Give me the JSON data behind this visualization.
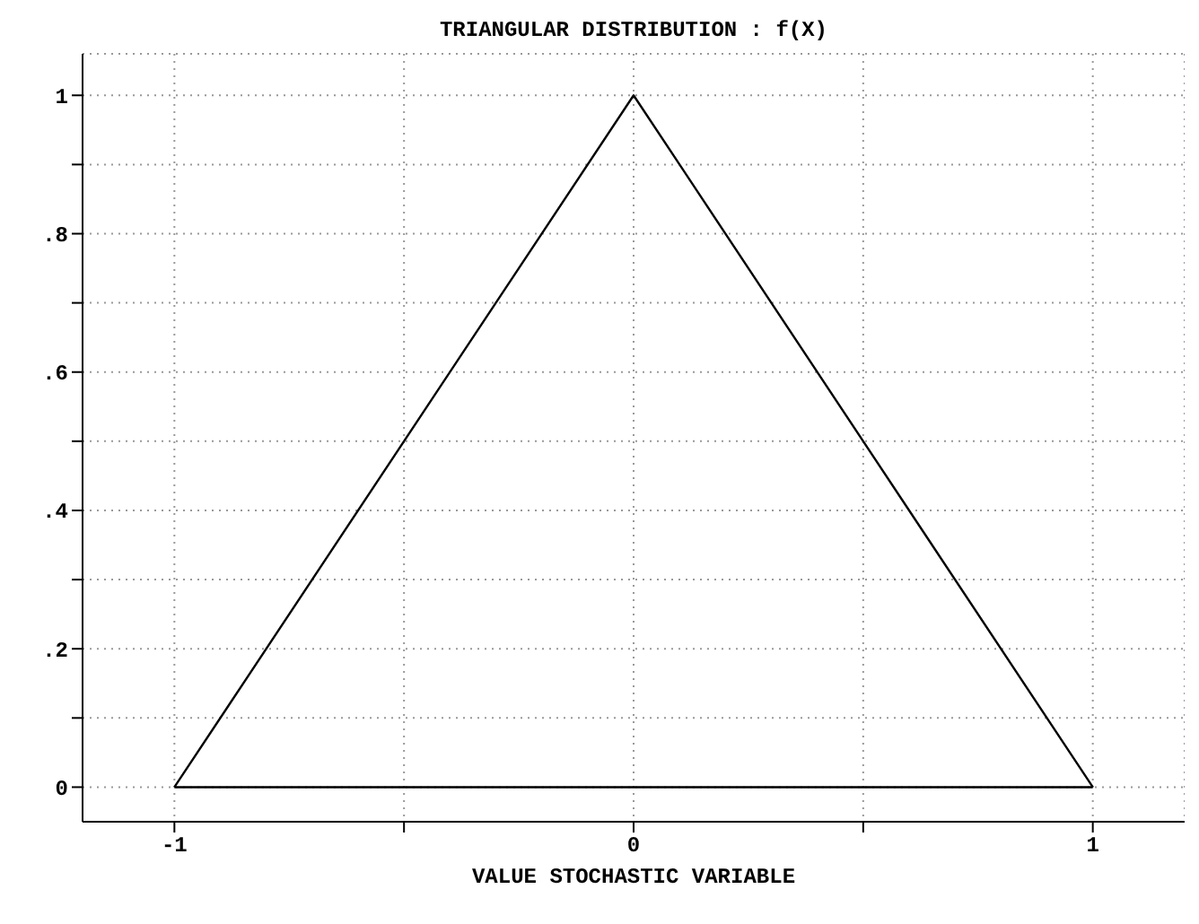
{
  "chart_data": {
    "type": "line",
    "title": "TRIANGULAR DISTRIBUTION : f(X)",
    "xlabel": "VALUE STOCHASTIC VARIABLE",
    "x": [
      -1,
      0,
      1
    ],
    "series": [
      {
        "color": "#000000",
        "values": [
          0,
          1,
          0
        ]
      },
      {
        "color": "#000000",
        "x": [
          -1,
          1
        ],
        "values": [
          0,
          0
        ]
      }
    ],
    "xlim": [
      -1.2,
      1.2
    ],
    "xticks": [
      -1,
      {
        "value": -0.5,
        "label": null
      },
      0,
      {
        "value": 0.5,
        "label": null
      },
      1
    ],
    "ylim": [
      -0.05,
      1.06
    ],
    "yticks": [
      0,
      {
        "value": 0.1,
        "label": null
      },
      {
        "value": 0.2,
        "label": ".2"
      },
      {
        "value": 0.3,
        "label": null
      },
      {
        "value": 0.4,
        "label": ".4"
      },
      {
        "value": 0.5,
        "label": null
      },
      {
        "value": 0.6,
        "label": ".6"
      },
      {
        "value": 0.7,
        "label": null
      },
      {
        "value": 0.8,
        "label": ".8"
      },
      {
        "value": 0.9,
        "label": null
      },
      1
    ],
    "grid": true,
    "marker": "none",
    "line_style": "solid"
  }
}
